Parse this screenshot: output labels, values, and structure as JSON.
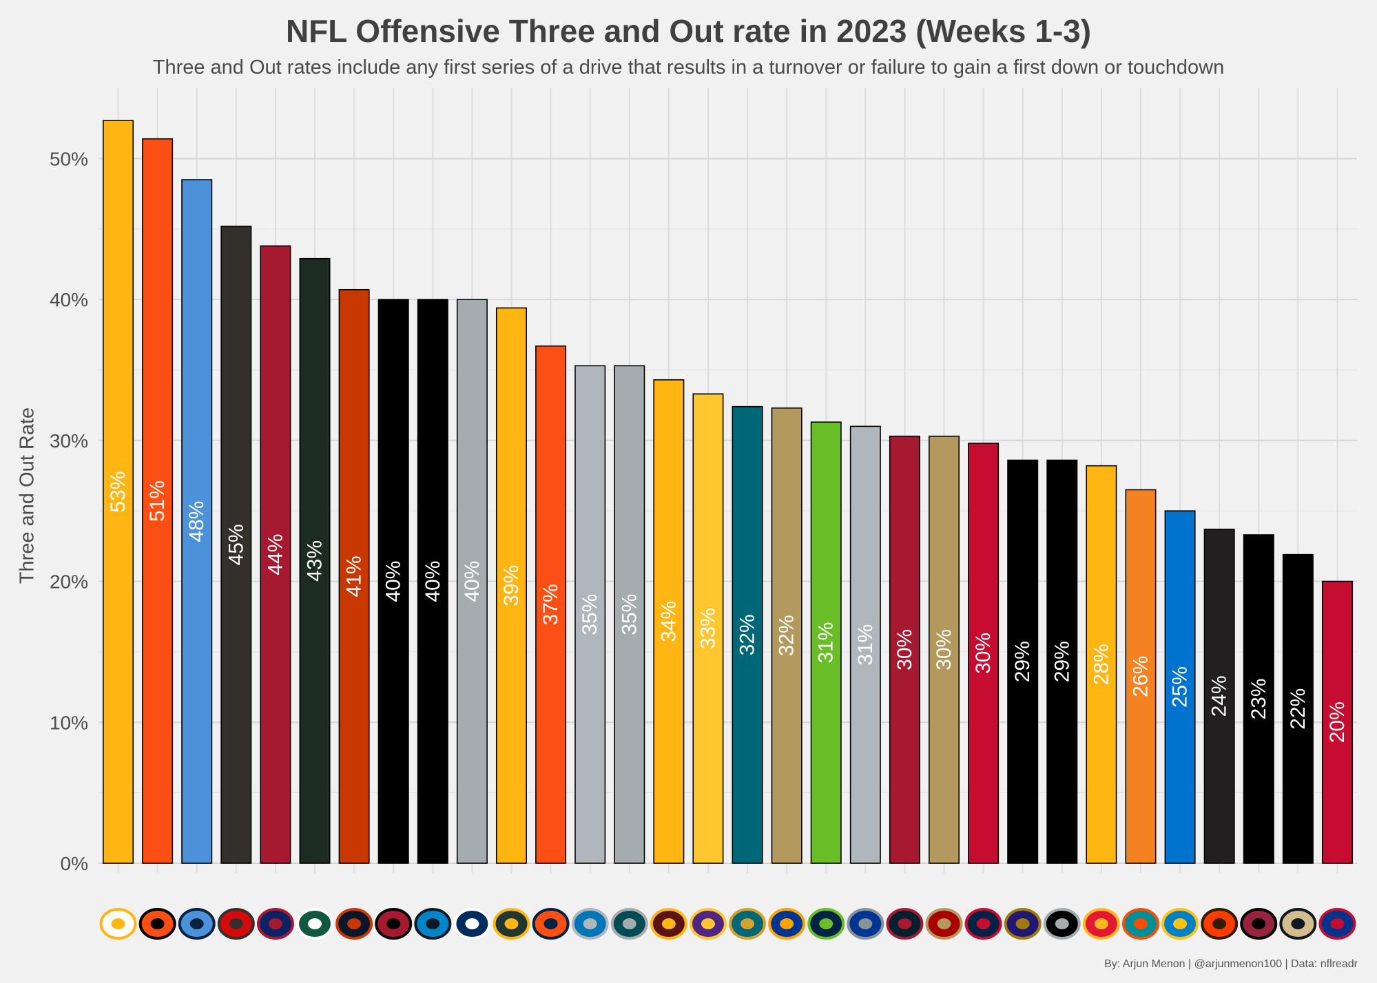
{
  "chart_data": {
    "type": "bar",
    "title": "NFL Offensive Three and Out rate in 2023 (Weeks 1-3)",
    "subtitle": "Three and Out rates include any first series of a drive that results in a turnover or failure to gain a first down or touchdown",
    "ylabel": "Three and Out Rate",
    "caption": "By: Arjun Menon | @arjunmenon100 | Data: nflreadr",
    "ylim": [
      0,
      55
    ],
    "yticks": [
      0,
      10,
      20,
      30,
      40,
      50
    ],
    "ytick_labels": [
      "0%",
      "10%",
      "20%",
      "30%",
      "40%",
      "50%"
    ],
    "grid": true,
    "categories": [
      "PIT",
      "CIN",
      "TEN",
      "TB",
      "NYG",
      "NYJ",
      "CHI",
      "ATL",
      "CAR",
      "IND",
      "GB",
      "DEN",
      "DET",
      "PHI",
      "WAS",
      "MIN",
      "JAX",
      "LA",
      "SEA",
      "DAL",
      "HOU",
      "SF",
      "NE",
      "BAL",
      "LV",
      "KC",
      "MIA",
      "LAC",
      "CLE",
      "ARI",
      "NO",
      "BUF"
    ],
    "values": [
      52.7,
      51.4,
      48.5,
      45.2,
      43.8,
      42.9,
      40.7,
      40.0,
      40.0,
      40.0,
      39.4,
      36.7,
      35.3,
      35.3,
      34.3,
      33.3,
      32.4,
      32.3,
      31.3,
      31.0,
      30.3,
      30.3,
      29.8,
      28.6,
      28.6,
      28.2,
      26.5,
      25.0,
      23.7,
      23.3,
      21.9,
      20.0
    ],
    "labels": [
      "53%",
      "51%",
      "48%",
      "45%",
      "44%",
      "43%",
      "41%",
      "40%",
      "40%",
      "40%",
      "39%",
      "37%",
      "35%",
      "35%",
      "34%",
      "33%",
      "32%",
      "32%",
      "31%",
      "31%",
      "30%",
      "30%",
      "30%",
      "29%",
      "29%",
      "28%",
      "26%",
      "25%",
      "24%",
      "23%",
      "22%",
      "20%"
    ],
    "colors": [
      "#FFB612",
      "#FB4F14",
      "#4B92DB",
      "#34302B",
      "#A71930",
      "#1C2C23",
      "#C83803",
      "#000000",
      "#000000",
      "#A5ACAF",
      "#FFB612",
      "#FB4F14",
      "#B0B7BC",
      "#A5ACAF",
      "#FFB612",
      "#FFC62F",
      "#006778",
      "#B3995D",
      "#69BE28",
      "#B0B7BC",
      "#A71930",
      "#B3995D",
      "#C60C30",
      "#000000",
      "#000000",
      "#FFB612",
      "#F58220",
      "#0073CF",
      "#231F20",
      "#000000",
      "#000000",
      "#C60C30"
    ],
    "label_colors": [
      "#ffffff",
      "#ffffff",
      "#ffffff",
      "#ffffff",
      "#ffffff",
      "#ffffff",
      "#ffffff",
      "#ffffff",
      "#ffffff",
      "#ffffff",
      "#ffffff",
      "#ffffff",
      "#ffffff",
      "#ffffff",
      "#ffffff",
      "#ffffff",
      "#ffffff",
      "#ffffff",
      "#ffffff",
      "#ffffff",
      "#ffffff",
      "#ffffff",
      "#ffffff",
      "#ffffff",
      "#ffffff",
      "#ffffff",
      "#ffffff",
      "#ffffff",
      "#ffffff",
      "#ffffff",
      "#ffffff",
      "#ffffff"
    ],
    "logo_colors": [
      [
        "#ffffff",
        "#FFB612"
      ],
      [
        "#FB4F14",
        "#000000"
      ],
      [
        "#4B92DB",
        "#0C2340"
      ],
      [
        "#D50A0A",
        "#34302B"
      ],
      [
        "#0B2265",
        "#A71930"
      ],
      [
        "#125740",
        "#ffffff"
      ],
      [
        "#0B162A",
        "#C83803"
      ],
      [
        "#A71930",
        "#000000"
      ],
      [
        "#0085CA",
        "#101820"
      ],
      [
        "#002C5F",
        "#ffffff"
      ],
      [
        "#203731",
        "#FFB612"
      ],
      [
        "#FB4F14",
        "#002244"
      ],
      [
        "#0076B6",
        "#B0B7BC"
      ],
      [
        "#004C54",
        "#A5ACAF"
      ],
      [
        "#5A1414",
        "#FFB612"
      ],
      [
        "#4F2683",
        "#FFC62F"
      ],
      [
        "#006778",
        "#D7A22A"
      ],
      [
        "#003594",
        "#FFA300"
      ],
      [
        "#002244",
        "#69BE28"
      ],
      [
        "#003594",
        "#869397"
      ],
      [
        "#03202F",
        "#A71930"
      ],
      [
        "#AA0000",
        "#B3995D"
      ],
      [
        "#002244",
        "#C60C30"
      ],
      [
        "#241773",
        "#9E7C0C"
      ],
      [
        "#000000",
        "#A5ACAF"
      ],
      [
        "#E31837",
        "#FFB81C"
      ],
      [
        "#008E97",
        "#FC4C02"
      ],
      [
        "#0080C6",
        "#FFC20E"
      ],
      [
        "#FF3C00",
        "#311D00"
      ],
      [
        "#97233F",
        "#000000"
      ],
      [
        "#D3BC8D",
        "#101820"
      ],
      [
        "#00338D",
        "#C60C30"
      ]
    ]
  }
}
